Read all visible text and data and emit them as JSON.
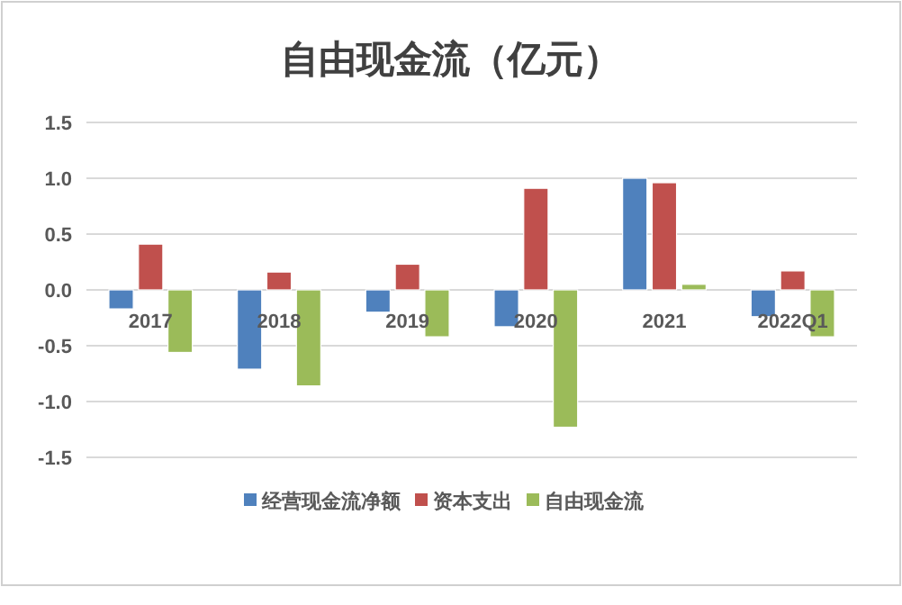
{
  "chart_data": {
    "type": "bar",
    "title": "自由现金流（亿元）",
    "categories": [
      "2017",
      "2018",
      "2019",
      "2020",
      "2021",
      "2022Q1"
    ],
    "series": [
      {
        "name": "经营现金流净额",
        "color": "#4f81bd",
        "values": [
          -0.17,
          -0.71,
          -0.2,
          -0.33,
          1.0,
          -0.24
        ]
      },
      {
        "name": "资本支出",
        "color": "#c0504d",
        "values": [
          0.41,
          0.16,
          0.23,
          0.91,
          0.96,
          0.17
        ]
      },
      {
        "name": "自由现金流",
        "color": "#9bbb59",
        "values": [
          -0.56,
          -0.86,
          -0.42,
          -1.23,
          0.05,
          -0.42
        ]
      }
    ],
    "ylim": [
      -1.5,
      1.5
    ],
    "yticks": [
      {
        "value": 1.5,
        "label": "1.5"
      },
      {
        "value": 1,
        "label": "1.0"
      },
      {
        "value": 0.5,
        "label": "0.5"
      },
      {
        "value": 0,
        "label": "0.0"
      },
      {
        "value": -0.5,
        "label": "-0.5"
      },
      {
        "value": -1,
        "label": "-1.0"
      },
      {
        "value": -1.5,
        "label": "-1.5"
      }
    ],
    "grid": "y",
    "legend": "bottom"
  }
}
